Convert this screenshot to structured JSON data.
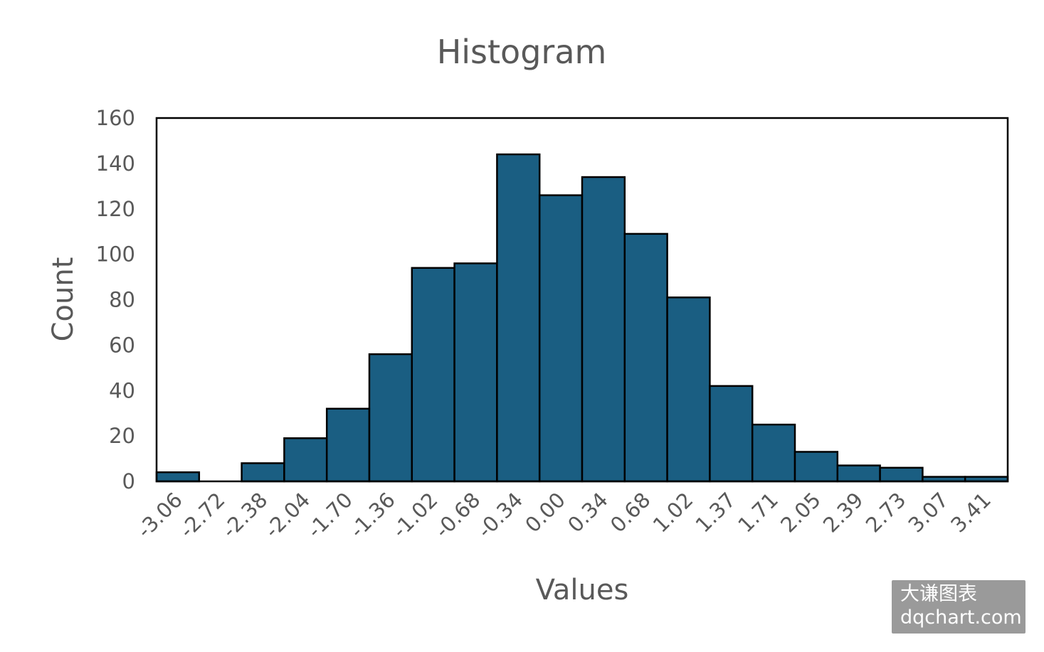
{
  "chart_data": {
    "type": "bar",
    "title": "Histogram",
    "xlabel": "Values",
    "ylabel": "Count",
    "ylim": [
      0,
      160
    ],
    "yticks": [
      0,
      20,
      40,
      60,
      80,
      100,
      120,
      140,
      160
    ],
    "categories": [
      "-3.06",
      "-2.72",
      "-2.38",
      "-2.04",
      "-1.70",
      "-1.36",
      "-1.02",
      "-0.68",
      "-0.34",
      "0.00",
      "0.34",
      "0.68",
      "1.02",
      "1.37",
      "1.71",
      "2.05",
      "2.39",
      "2.73",
      "3.07",
      "3.41"
    ],
    "values": [
      4,
      0,
      8,
      19,
      32,
      56,
      94,
      96,
      144,
      126,
      134,
      109,
      81,
      42,
      25,
      13,
      7,
      6,
      2,
      2
    ],
    "bar_color": "#1a5e82",
    "edge_color": "#000000",
    "grid": false,
    "legend": "none"
  },
  "watermark": {
    "line1": "大谦图表",
    "line2": "dqchart.com"
  }
}
